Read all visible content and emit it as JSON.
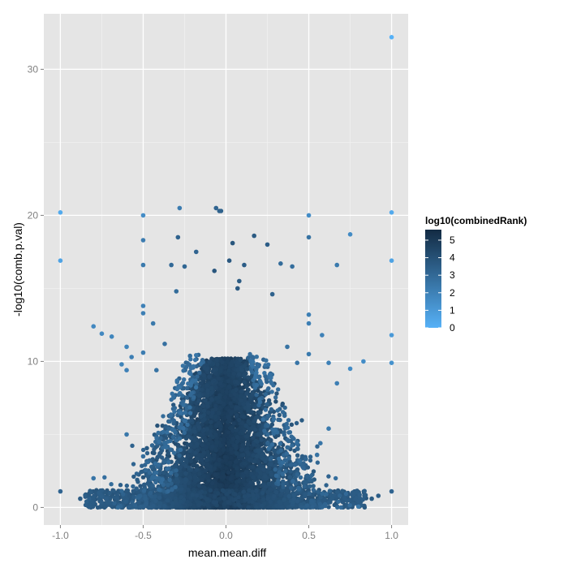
{
  "chart_data": {
    "type": "scatter",
    "title": "",
    "xlabel": "mean.mean.diff",
    "ylabel": "-log10(comb.p.val)",
    "xlim": [
      -1.1,
      1.1
    ],
    "ylim": [
      -1.2,
      33.8
    ],
    "x_ticks": [
      -1.0,
      -0.5,
      0.0,
      0.5,
      1.0
    ],
    "x_tick_labels": [
      "-1.0",
      "-0.5",
      "0.0",
      "0.5",
      "1.0"
    ],
    "y_ticks": [
      0,
      10,
      20,
      30
    ],
    "y_tick_labels": [
      "0",
      "10",
      "20",
      "30"
    ],
    "grid": true,
    "background": "#e5e5e5",
    "gridline_color": "#ffffff",
    "color_scale": {
      "variable": "log10(combinedRank)",
      "low_value": 0,
      "high_value": 5.6,
      "low_color": "#56b1f7",
      "high_color": "#132b43",
      "breaks": [
        0,
        1,
        2,
        3,
        4,
        5
      ],
      "break_labels": [
        "0",
        "1",
        "2",
        "3",
        "4",
        "5"
      ]
    },
    "legend_position": "right",
    "points": [
      {
        "x": 1.0,
        "y": 32.2,
        "c": 0.0
      },
      {
        "x": -1.0,
        "y": 20.2,
        "c": 0.3
      },
      {
        "x": 1.0,
        "y": 20.2,
        "c": 0.3
      },
      {
        "x": -1.0,
        "y": 16.9,
        "c": 0.6
      },
      {
        "x": 1.0,
        "y": 16.9,
        "c": 0.6
      },
      {
        "x": 1.0,
        "y": 11.8,
        "c": 1.0
      },
      {
        "x": 1.0,
        "y": 9.9,
        "c": 1.3
      },
      {
        "x": -0.5,
        "y": 20.0,
        "c": 1.5
      },
      {
        "x": 0.5,
        "y": 20.0,
        "c": 1.5
      },
      {
        "x": -0.28,
        "y": 20.5,
        "c": 2.2
      },
      {
        "x": -0.06,
        "y": 20.5,
        "c": 3.2
      },
      {
        "x": -0.04,
        "y": 20.3,
        "c": 3.3
      },
      {
        "x": -0.03,
        "y": 20.3,
        "c": 3.4
      },
      {
        "x": -0.5,
        "y": 18.3,
        "c": 2.2
      },
      {
        "x": 0.5,
        "y": 18.5,
        "c": 2.6
      },
      {
        "x": 0.75,
        "y": 18.7,
        "c": 1.6
      },
      {
        "x": -0.29,
        "y": 18.5,
        "c": 3.3
      },
      {
        "x": 0.17,
        "y": 18.6,
        "c": 3.6
      },
      {
        "x": 0.25,
        "y": 18.0,
        "c": 3.5
      },
      {
        "x": 0.04,
        "y": 18.1,
        "c": 3.8
      },
      {
        "x": -0.18,
        "y": 17.5,
        "c": 3.2
      },
      {
        "x": -0.5,
        "y": 16.6,
        "c": 2.3
      },
      {
        "x": -0.33,
        "y": 16.6,
        "c": 3.0
      },
      {
        "x": -0.25,
        "y": 16.5,
        "c": 3.1
      },
      {
        "x": 0.67,
        "y": 16.6,
        "c": 2.3
      },
      {
        "x": 0.33,
        "y": 16.7,
        "c": 2.9
      },
      {
        "x": 0.11,
        "y": 16.6,
        "c": 3.5
      },
      {
        "x": 0.02,
        "y": 16.9,
        "c": 3.7
      },
      {
        "x": -0.07,
        "y": 16.2,
        "c": 3.8
      },
      {
        "x": 0.4,
        "y": 16.5,
        "c": 2.8
      },
      {
        "x": 0.08,
        "y": 15.5,
        "c": 3.6
      },
      {
        "x": -0.3,
        "y": 14.8,
        "c": 2.9
      },
      {
        "x": 0.07,
        "y": 15.0,
        "c": 3.7
      },
      {
        "x": 0.28,
        "y": 14.6,
        "c": 3.3
      },
      {
        "x": -0.5,
        "y": 13.8,
        "c": 2.0
      },
      {
        "x": 0.5,
        "y": 13.2,
        "c": 2.1
      },
      {
        "x": -0.5,
        "y": 13.3,
        "c": 2.1
      },
      {
        "x": -0.8,
        "y": 12.4,
        "c": 1.7
      },
      {
        "x": -0.75,
        "y": 11.9,
        "c": 1.7
      },
      {
        "x": -0.69,
        "y": 11.7,
        "c": 1.8
      },
      {
        "x": 0.58,
        "y": 11.8,
        "c": 2.0
      },
      {
        "x": -0.44,
        "y": 12.6,
        "c": 2.4
      },
      {
        "x": 0.5,
        "y": 12.6,
        "c": 2.1
      },
      {
        "x": -0.6,
        "y": 11.0,
        "c": 1.9
      },
      {
        "x": 0.83,
        "y": 10.0,
        "c": 1.5
      },
      {
        "x": 0.75,
        "y": 9.5,
        "c": 1.6
      },
      {
        "x": -0.63,
        "y": 9.8,
        "c": 1.9
      },
      {
        "x": -0.6,
        "y": 9.4,
        "c": 2.0
      },
      {
        "x": -0.57,
        "y": 10.3,
        "c": 2.1
      },
      {
        "x": 0.62,
        "y": 9.9,
        "c": 2.0
      },
      {
        "x": 0.67,
        "y": 8.5,
        "c": 2.1
      },
      {
        "x": -0.5,
        "y": 10.6,
        "c": 2.2
      },
      {
        "x": 0.5,
        "y": 10.5,
        "c": 2.3
      },
      {
        "x": 0.43,
        "y": 9.9,
        "c": 2.5
      },
      {
        "x": -0.42,
        "y": 9.4,
        "c": 2.6
      },
      {
        "x": 0.37,
        "y": 11.0,
        "c": 2.6
      },
      {
        "x": -0.37,
        "y": 11.2,
        "c": 2.7
      },
      {
        "x": 0.62,
        "y": 5.4,
        "c": 2.3
      },
      {
        "x": 0.57,
        "y": 4.4,
        "c": 2.5
      },
      {
        "x": -0.6,
        "y": 5.0,
        "c": 2.4
      },
      {
        "x": -0.5,
        "y": 3.5,
        "c": 2.8
      },
      {
        "x": 0.55,
        "y": 3.6,
        "c": 2.6
      },
      {
        "x": -0.8,
        "y": 2.0,
        "c": 2.5
      },
      {
        "x": -1.0,
        "y": 1.1,
        "c": 3.2
      },
      {
        "x": 1.0,
        "y": 1.1,
        "c": 3.2
      },
      {
        "x": -0.88,
        "y": 0.6,
        "c": 3.6
      },
      {
        "x": 0.88,
        "y": 0.6,
        "c": 3.6
      },
      {
        "x": 0.92,
        "y": 0.8,
        "c": 3.5
      }
    ],
    "density_cloud": {
      "description_series": "dense-core",
      "x_range": [
        -0.85,
        0.9
      ],
      "y_range": [
        0,
        10.4
      ],
      "note_color_range": [
        2.3,
        5.5
      ]
    }
  }
}
